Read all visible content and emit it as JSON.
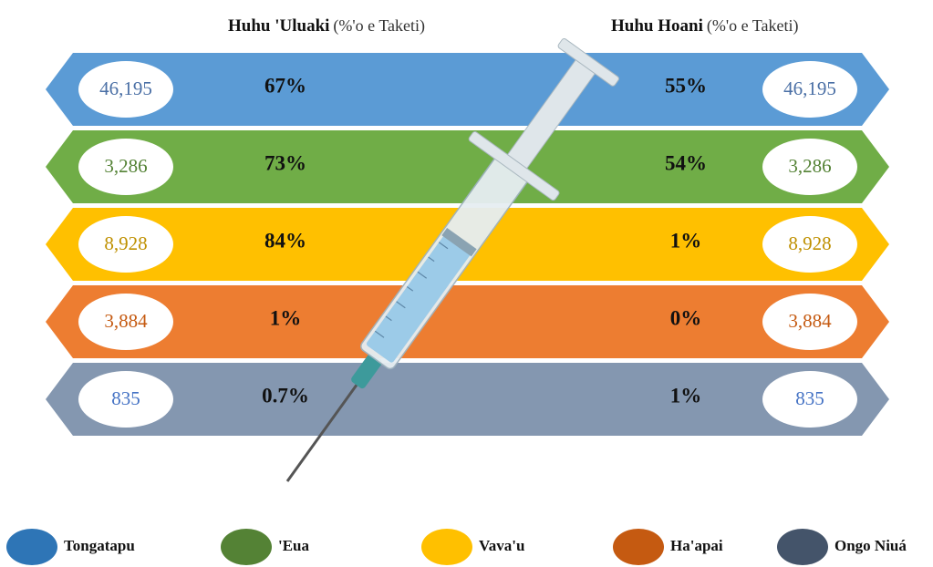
{
  "headers": [
    {
      "bold": "Huhu 'Uluaki",
      "rest": "(%'o e Taketi)"
    },
    {
      "bold": "Huhu Hoani",
      "rest": "(%'o e Taketi)"
    }
  ],
  "rows": [
    {
      "count": "46,195",
      "first": "67%",
      "second": "55%",
      "color": "#5b9bd5",
      "text_color": "#4a6fa5"
    },
    {
      "count": "3,286",
      "first": "73%",
      "second": "54%",
      "color": "#70ad47",
      "text_color": "#548235"
    },
    {
      "count": "8,928",
      "first": "84%",
      "second": "1%",
      "color": "#ffc000",
      "text_color": "#bf9000"
    },
    {
      "count": "3,884",
      "first": "1%",
      "second": "0%",
      "color": "#ed7d31",
      "text_color": "#c55a11"
    },
    {
      "count": "835",
      "first": "0.7%",
      "second": "1%",
      "color": "#8497b0",
      "text_color": "#4472c4"
    }
  ],
  "legend": [
    {
      "label": "Tongatapu",
      "color": "#2e75b6"
    },
    {
      "label": "'Eua",
      "color": "#548235"
    },
    {
      "label": "Vava'u",
      "color": "#ffc000"
    },
    {
      "label": "Ha'apai",
      "color": "#c55a11"
    },
    {
      "label": "Ongo Niuá",
      "color": "#44546a"
    }
  ]
}
